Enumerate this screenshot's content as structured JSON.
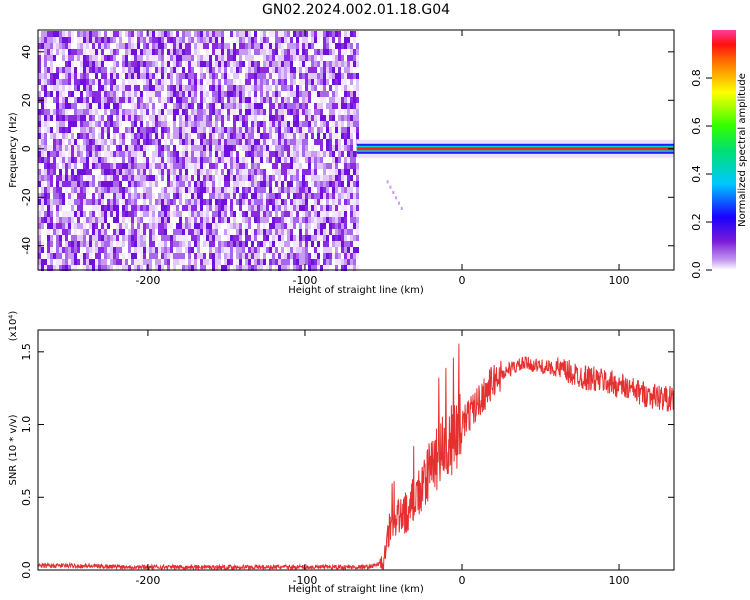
{
  "title": "GN02.2024.002.01.18.G04",
  "colors": {
    "snr_line": "#e53030",
    "frame": "#000000"
  },
  "chart_data": [
    {
      "type": "heatmap",
      "xlabel": "Height of straight line (km)",
      "ylabel": "Frequency (Hz)",
      "xlim": [
        -270,
        135
      ],
      "ylim": [
        -50,
        49
      ],
      "xticks": [
        -200,
        -100,
        0,
        100
      ],
      "xtick_labels": [
        "-200",
        "-100",
        "0",
        "100"
      ],
      "yticks": [
        -40,
        -20,
        0,
        20,
        40
      ],
      "ytick_labels": [
        "-40",
        "-20",
        "0",
        "20",
        "40"
      ],
      "noise_region_x": [
        -270,
        -67
      ],
      "tone_frequency_hz": 0,
      "tone_region_x": [
        -67,
        135
      ],
      "colorbar": {
        "label": "Normalized spectral amplitude",
        "range": [
          0,
          1
        ],
        "ticks": [
          0.0,
          0.2,
          0.4,
          0.6,
          0.8
        ],
        "tick_labels": [
          "0.0",
          "0.2",
          "0.4",
          "0.6",
          "0.8"
        ],
        "colormap": "rainbow-white"
      },
      "legend": "none",
      "grid": false
    },
    {
      "type": "line",
      "xlabel": "Height of straight line (km)",
      "ylabel": "SNR (10 * v/v)",
      "y_multiplier_label": "(x10⁴)",
      "xlim": [
        -270,
        135
      ],
      "ylim": [
        0,
        1.65
      ],
      "xticks": [
        -200,
        -100,
        0,
        100
      ],
      "xtick_labels": [
        "-200",
        "-100",
        "0",
        "100"
      ],
      "yticks": [
        0.0,
        0.5,
        1.0,
        1.5
      ],
      "ytick_labels": [
        "0.0",
        "0.5",
        "1.0",
        "1.5"
      ],
      "legend": "none",
      "grid": false,
      "series": [
        {
          "x": [
            -270,
            -250,
            -200,
            -150,
            -100,
            -60,
            -50,
            -48,
            -46,
            -40,
            -35,
            -30,
            -25,
            -20,
            -15,
            -10,
            -5,
            0,
            10,
            20,
            30,
            40,
            50,
            60,
            70,
            80,
            90,
            100,
            110,
            120,
            135
          ],
          "y": [
            0.03,
            0.03,
            0.02,
            0.02,
            0.02,
            0.02,
            0.05,
            0.15,
            0.3,
            0.35,
            0.4,
            0.5,
            0.55,
            0.7,
            0.8,
            0.85,
            0.9,
            1.0,
            1.15,
            1.3,
            1.38,
            1.42,
            1.4,
            1.38,
            1.35,
            1.32,
            1.3,
            1.27,
            1.23,
            1.2,
            1.17
          ]
        }
      ]
    }
  ]
}
